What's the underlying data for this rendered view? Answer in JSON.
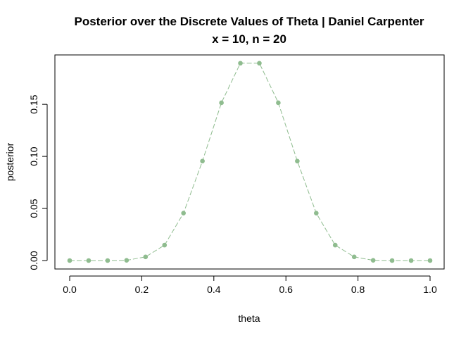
{
  "chart_data": {
    "type": "line",
    "title": "Posterior over the Discrete Values of Theta | Daniel Carpenter",
    "subtitle": "x = 10, n = 20",
    "xlabel": "theta",
    "ylabel": "posterior",
    "xlim": [
      0,
      1
    ],
    "ylim": [
      0,
      0.19
    ],
    "x_ticks": [
      0.0,
      0.2,
      0.4,
      0.6,
      0.8,
      1.0
    ],
    "x_tick_labels": [
      "0.0",
      "0.2",
      "0.4",
      "0.6",
      "0.8",
      "1.0"
    ],
    "y_ticks": [
      0.0,
      0.05,
      0.1,
      0.15
    ],
    "y_tick_labels": [
      "0.00",
      "0.05",
      "0.10",
      "0.15"
    ],
    "grid": false,
    "legend": "none",
    "series_color": "#8fbc8f",
    "line_style": "dashed-with-points",
    "x": [
      0.0,
      0.0526,
      0.1053,
      0.1579,
      0.2105,
      0.2632,
      0.3158,
      0.3684,
      0.4211,
      0.4737,
      0.5263,
      0.5789,
      0.6316,
      0.6842,
      0.7368,
      0.7895,
      0.8421,
      0.8947,
      0.9474,
      1.0
    ],
    "y": [
      0.0,
      0.0,
      0.0,
      0.0002,
      0.0035,
      0.0148,
      0.0455,
      0.0955,
      0.1515,
      0.1895,
      0.1895,
      0.1515,
      0.0955,
      0.0455,
      0.0148,
      0.0035,
      0.0002,
      0.0,
      0.0,
      0.0
    ]
  }
}
